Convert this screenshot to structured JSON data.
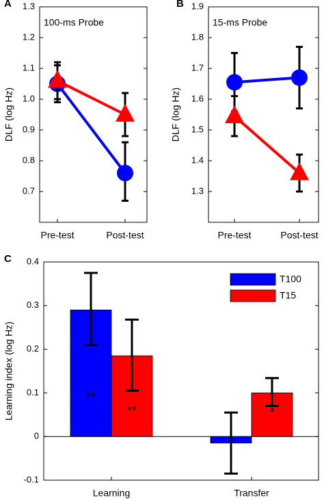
{
  "chart_data": [
    {
      "panel": "A",
      "type": "line",
      "title": "100-ms Probe",
      "ylabel": "DLF (log Hz)",
      "xlabel": "",
      "categories": [
        "Pre-test",
        "Post-test"
      ],
      "ylim": [
        0.6,
        1.3
      ],
      "yticks": [
        "0.7",
        "0.8",
        "0.9",
        "1.0",
        "1.1",
        "1.2",
        "1.3"
      ],
      "series": [
        {
          "marker": "circle",
          "color": "#0000ff",
          "values": [
            1.05,
            0.76
          ],
          "err_low": [
            0.99,
            0.67
          ],
          "err_high": [
            1.12,
            0.86
          ]
        },
        {
          "marker": "triangle",
          "color": "#ff0000",
          "values": [
            1.06,
            0.95
          ],
          "err_low": [
            1.0,
            0.88
          ],
          "err_high": [
            1.11,
            1.02
          ]
        }
      ]
    },
    {
      "panel": "B",
      "type": "line",
      "title": "15-ms Probe",
      "ylabel": "DLF (log Hz)",
      "xlabel": "",
      "categories": [
        "Pre-test",
        "Post-test"
      ],
      "ylim": [
        1.2,
        1.9
      ],
      "yticks": [
        "1.3",
        "1.4",
        "1.5",
        "1.6",
        "1.7",
        "1.8",
        "1.9"
      ],
      "series": [
        {
          "marker": "circle",
          "color": "#0000ff",
          "values": [
            1.655,
            1.67
          ],
          "err_low": [
            1.56,
            1.57
          ],
          "err_high": [
            1.75,
            1.77
          ]
        },
        {
          "marker": "triangle",
          "color": "#ff0000",
          "values": [
            1.545,
            1.36
          ],
          "err_low": [
            1.48,
            1.3
          ],
          "err_high": [
            1.61,
            1.42
          ]
        }
      ]
    },
    {
      "panel": "C",
      "type": "bar",
      "title": "",
      "ylabel": "Learning index (log Hz)",
      "xlabel": "",
      "categories": [
        "Learning",
        "Transfer"
      ],
      "ylim": [
        -0.1,
        0.4
      ],
      "yticks": [
        "-0.1",
        "0",
        "0.1",
        "0.2",
        "0.3",
        "0.4"
      ],
      "legend_position": "top-right",
      "series": [
        {
          "name": "T100",
          "color": "#0000ff",
          "values": [
            0.29,
            -0.015
          ],
          "err_low": [
            0.21,
            -0.085
          ],
          "err_high": [
            0.375,
            0.055
          ],
          "annotations": [
            "**",
            ""
          ]
        },
        {
          "name": "T15",
          "color": "#ff0000",
          "values": [
            0.185,
            0.1
          ],
          "err_low": [
            0.105,
            0.07
          ],
          "err_high": [
            0.268,
            0.134
          ],
          "annotations": [
            "**",
            "*"
          ]
        }
      ]
    }
  ]
}
